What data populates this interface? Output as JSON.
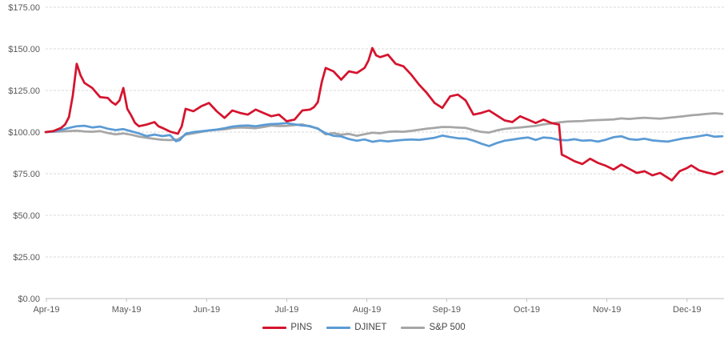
{
  "chart_data": {
    "type": "line",
    "title": "",
    "xlabel": "",
    "ylabel": "",
    "grid": true,
    "legend_position": "bottom",
    "y_axis": {
      "min": 0,
      "max": 175,
      "step": 25,
      "tick_labels": [
        "$0.00",
        "$25.00",
        "$50.00",
        "$75.00",
        "$100.00",
        "$125.00",
        "$150.00",
        "$175.00"
      ]
    },
    "x_axis": {
      "unit": "trading-day index (Apr 2019 = 0)",
      "domain": [
        0,
        174
      ],
      "ticks": [
        {
          "day": 0.2,
          "label": "Apr-19"
        },
        {
          "day": 20.8,
          "label": "May-19"
        },
        {
          "day": 41.4,
          "label": "Jun-19"
        },
        {
          "day": 62.0,
          "label": "Jul-19"
        },
        {
          "day": 82.6,
          "label": "Aug-19"
        },
        {
          "day": 103.1,
          "label": "Sep-19"
        },
        {
          "day": 123.7,
          "label": "Oct-19"
        },
        {
          "day": 144.3,
          "label": "Nov-19"
        },
        {
          "day": 164.9,
          "label": "Dec-19"
        }
      ]
    },
    "series": [
      {
        "name": "PINS",
        "color": "#d5142e",
        "points": [
          [
            0,
            100
          ],
          [
            2,
            100.6
          ],
          [
            4,
            102.5
          ],
          [
            5,
            104.5
          ],
          [
            6,
            109
          ],
          [
            7,
            122
          ],
          [
            8,
            141
          ],
          [
            9,
            134
          ],
          [
            10,
            129.5
          ],
          [
            12,
            126.5
          ],
          [
            14,
            121
          ],
          [
            16,
            120.5
          ],
          [
            17,
            118
          ],
          [
            18,
            116.5
          ],
          [
            19,
            119
          ],
          [
            20,
            126.5
          ],
          [
            21,
            114
          ],
          [
            22,
            110
          ],
          [
            23,
            105.5
          ],
          [
            24,
            103.5
          ],
          [
            26,
            104.5
          ],
          [
            28,
            106
          ],
          [
            29,
            103.5
          ],
          [
            30,
            102.5
          ],
          [
            32,
            100.3
          ],
          [
            34,
            99
          ],
          [
            35,
            103.5
          ],
          [
            36,
            114
          ],
          [
            38,
            112.5
          ],
          [
            40,
            115.5
          ],
          [
            42,
            117.5
          ],
          [
            44,
            112.5
          ],
          [
            46,
            108.5
          ],
          [
            48,
            113
          ],
          [
            50,
            111.5
          ],
          [
            52,
            110.5
          ],
          [
            54,
            113.5
          ],
          [
            56,
            111.5
          ],
          [
            58,
            109.5
          ],
          [
            60,
            110.5
          ],
          [
            62,
            106.5
          ],
          [
            64,
            107.5
          ],
          [
            66,
            113
          ],
          [
            68,
            113.5
          ],
          [
            69,
            115
          ],
          [
            70,
            118
          ],
          [
            71,
            130
          ],
          [
            72,
            138.5
          ],
          [
            74,
            136.5
          ],
          [
            76,
            131.5
          ],
          [
            78,
            136.5
          ],
          [
            80,
            135.5
          ],
          [
            82,
            138.5
          ],
          [
            83,
            143
          ],
          [
            84,
            150.5
          ],
          [
            85,
            146
          ],
          [
            86,
            145
          ],
          [
            88,
            146.5
          ],
          [
            90,
            141
          ],
          [
            92,
            139.5
          ],
          [
            94,
            134.5
          ],
          [
            96,
            128.5
          ],
          [
            98,
            123.5
          ],
          [
            100,
            117.5
          ],
          [
            102,
            114.5
          ],
          [
            104,
            121.5
          ],
          [
            106,
            122.5
          ],
          [
            108,
            119
          ],
          [
            110,
            110.5
          ],
          [
            112,
            111.5
          ],
          [
            114,
            113
          ],
          [
            116,
            110
          ],
          [
            118,
            107
          ],
          [
            120,
            106
          ],
          [
            122,
            109.5
          ],
          [
            124,
            107.5
          ],
          [
            126,
            105.5
          ],
          [
            128,
            107.5
          ],
          [
            130,
            105.5
          ],
          [
            132,
            104.5
          ],
          [
            132.7,
            86.5
          ],
          [
            134,
            85
          ],
          [
            136,
            82.5
          ],
          [
            138,
            80.8
          ],
          [
            140,
            84
          ],
          [
            142,
            81.5
          ],
          [
            144,
            79.8
          ],
          [
            146,
            77.5
          ],
          [
            148,
            80.5
          ],
          [
            150,
            78
          ],
          [
            152,
            75.5
          ],
          [
            154,
            76.5
          ],
          [
            156,
            74
          ],
          [
            158,
            75.5
          ],
          [
            161,
            71
          ],
          [
            163,
            76.5
          ],
          [
            165,
            78.5
          ],
          [
            166,
            80
          ],
          [
            168,
            77
          ],
          [
            170,
            75.7
          ],
          [
            172,
            74.6
          ],
          [
            174,
            76.4
          ]
        ]
      },
      {
        "name": "DJINET",
        "color": "#5b9bd5",
        "points": [
          [
            0,
            100
          ],
          [
            2,
            100.4
          ],
          [
            4,
            101.3
          ],
          [
            6,
            102.5
          ],
          [
            8,
            103.5
          ],
          [
            10,
            103.8
          ],
          [
            12,
            102.8
          ],
          [
            14,
            103.3
          ],
          [
            16,
            102
          ],
          [
            18,
            101.2
          ],
          [
            20,
            101.8
          ],
          [
            22,
            100.5
          ],
          [
            24,
            99.2
          ],
          [
            26,
            97.6
          ],
          [
            28,
            98.5
          ],
          [
            30,
            97.6
          ],
          [
            32,
            98.2
          ],
          [
            33.5,
            94.5
          ],
          [
            34.5,
            95.2
          ],
          [
            36,
            99
          ],
          [
            38,
            100
          ],
          [
            40,
            100.5
          ],
          [
            42,
            101
          ],
          [
            44,
            101.5
          ],
          [
            46,
            102.3
          ],
          [
            48,
            103.3
          ],
          [
            50,
            103.8
          ],
          [
            52,
            104
          ],
          [
            54,
            103.5
          ],
          [
            56,
            104.3
          ],
          [
            58,
            104.8
          ],
          [
            60,
            105
          ],
          [
            62,
            105.4
          ],
          [
            64,
            104.6
          ],
          [
            66,
            104
          ],
          [
            68,
            103.6
          ],
          [
            70,
            102
          ],
          [
            72,
            99.3
          ],
          [
            74,
            97.8
          ],
          [
            76,
            97.4
          ],
          [
            78,
            95.8
          ],
          [
            80,
            94.8
          ],
          [
            82,
            95.6
          ],
          [
            84,
            94.2
          ],
          [
            86,
            94.9
          ],
          [
            88,
            94.4
          ],
          [
            90,
            94.9
          ],
          [
            92,
            95.3
          ],
          [
            94,
            95.6
          ],
          [
            96,
            95.3
          ],
          [
            98,
            95.9
          ],
          [
            100,
            96.6
          ],
          [
            102,
            97.9
          ],
          [
            104,
            97
          ],
          [
            106,
            96.3
          ],
          [
            108,
            96.1
          ],
          [
            110,
            94.8
          ],
          [
            112,
            93.1
          ],
          [
            114,
            91.6
          ],
          [
            116,
            93.4
          ],
          [
            118,
            94.8
          ],
          [
            120,
            95.5
          ],
          [
            122,
            96.2
          ],
          [
            124,
            96.8
          ],
          [
            126,
            95.3
          ],
          [
            128,
            96.8
          ],
          [
            130,
            96.4
          ],
          [
            132,
            95.3
          ],
          [
            134,
            95.1
          ],
          [
            136,
            95.7
          ],
          [
            138,
            94.8
          ],
          [
            140,
            95.1
          ],
          [
            142,
            94.3
          ],
          [
            144,
            95.4
          ],
          [
            146,
            96.9
          ],
          [
            148,
            97.5
          ],
          [
            150,
            95.8
          ],
          [
            152,
            95.4
          ],
          [
            154,
            96
          ],
          [
            156,
            95
          ],
          [
            158,
            94.6
          ],
          [
            160,
            94.3
          ],
          [
            162,
            95.3
          ],
          [
            164,
            96.2
          ],
          [
            166,
            96.8
          ],
          [
            168,
            97.5
          ],
          [
            170,
            98.3
          ],
          [
            172,
            97.2
          ],
          [
            174,
            97.5
          ]
        ]
      },
      {
        "name": "S&P 500",
        "color": "#a6a6a6",
        "points": [
          [
            0,
            100
          ],
          [
            2,
            100.2
          ],
          [
            4,
            100.4
          ],
          [
            6,
            100.6
          ],
          [
            8,
            100.8
          ],
          [
            10,
            100.4
          ],
          [
            12,
            100.2
          ],
          [
            14,
            100.6
          ],
          [
            16,
            99.4
          ],
          [
            18,
            98.6
          ],
          [
            20,
            99.2
          ],
          [
            22,
            98.4
          ],
          [
            24,
            97.3
          ],
          [
            26,
            96.6
          ],
          [
            28,
            95.9
          ],
          [
            30,
            95.4
          ],
          [
            32,
            95.2
          ],
          [
            34,
            95.6
          ],
          [
            36,
            98.4
          ],
          [
            38,
            99.3
          ],
          [
            40,
            100.1
          ],
          [
            42,
            100.9
          ],
          [
            44,
            101.3
          ],
          [
            46,
            101.7
          ],
          [
            48,
            102.4
          ],
          [
            50,
            102.8
          ],
          [
            52,
            102.6
          ],
          [
            54,
            102.3
          ],
          [
            56,
            103.1
          ],
          [
            58,
            103.9
          ],
          [
            60,
            103.6
          ],
          [
            62,
            103.7
          ],
          [
            64,
            104.2
          ],
          [
            66,
            104.6
          ],
          [
            68,
            103.3
          ],
          [
            70,
            102.2
          ],
          [
            72,
            98.6
          ],
          [
            74,
            99.4
          ],
          [
            76,
            98.4
          ],
          [
            78,
            98.9
          ],
          [
            80,
            97.8
          ],
          [
            82,
            98.7
          ],
          [
            84,
            99.6
          ],
          [
            86,
            99.3
          ],
          [
            88,
            100.1
          ],
          [
            90,
            100.4
          ],
          [
            92,
            100.2
          ],
          [
            94,
            100.7
          ],
          [
            96,
            101.4
          ],
          [
            98,
            102
          ],
          [
            100,
            102.5
          ],
          [
            102,
            103.1
          ],
          [
            104,
            103
          ],
          [
            106,
            102.7
          ],
          [
            108,
            102.5
          ],
          [
            110,
            101.2
          ],
          [
            112,
            100.1
          ],
          [
            114,
            99.7
          ],
          [
            116,
            101
          ],
          [
            118,
            101.9
          ],
          [
            120,
            102.4
          ],
          [
            122,
            102.8
          ],
          [
            124,
            103.2
          ],
          [
            126,
            103.7
          ],
          [
            128,
            104.6
          ],
          [
            130,
            105.2
          ],
          [
            132,
            105.8
          ],
          [
            134,
            106.3
          ],
          [
            136,
            106.5
          ],
          [
            138,
            106.6
          ],
          [
            140,
            107
          ],
          [
            142,
            107.2
          ],
          [
            144,
            107.4
          ],
          [
            146,
            107.6
          ],
          [
            148,
            108.2
          ],
          [
            150,
            107.9
          ],
          [
            152,
            108.3
          ],
          [
            154,
            108.6
          ],
          [
            156,
            108.3
          ],
          [
            158,
            108.1
          ],
          [
            160,
            108.5
          ],
          [
            162,
            109
          ],
          [
            164,
            109.5
          ],
          [
            166,
            110.1
          ],
          [
            168,
            110.5
          ],
          [
            170,
            110.9
          ],
          [
            172,
            111.3
          ],
          [
            174,
            110.9
          ]
        ]
      }
    ],
    "style": {
      "gridline_color": "#d9d9d9",
      "axis_color": "#bfbfbf",
      "tick_text_color": "#595959",
      "background": "#ffffff",
      "line_width": 2.75
    }
  }
}
